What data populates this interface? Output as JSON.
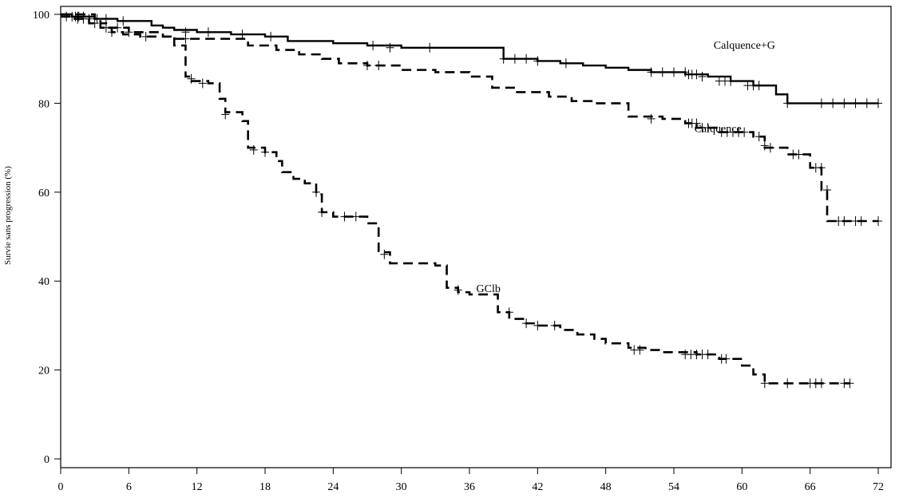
{
  "chart_data": {
    "type": "line",
    "subtype": "kaplan-meier",
    "title": "",
    "xlabel": "",
    "ylabel": "Survie sans progression (%)",
    "xlim": [
      0,
      72
    ],
    "ylim": [
      0,
      100
    ],
    "x_ticks": [
      0,
      6,
      12,
      18,
      24,
      30,
      36,
      42,
      48,
      54,
      60,
      66,
      72
    ],
    "y_ticks": [
      0,
      20,
      40,
      60,
      80,
      100
    ],
    "grid": false,
    "series": [
      {
        "name": "Calquence+G",
        "style": "solid",
        "steps": [
          [
            0,
            100
          ],
          [
            1,
            99.5
          ],
          [
            3,
            99
          ],
          [
            5,
            98.5
          ],
          [
            8,
            97.5
          ],
          [
            9,
            97
          ],
          [
            10,
            96.5
          ],
          [
            12,
            96
          ],
          [
            15,
            95.5
          ],
          [
            18,
            95
          ],
          [
            20,
            94
          ],
          [
            24,
            93.5
          ],
          [
            27,
            93
          ],
          [
            30,
            92.5
          ],
          [
            35,
            92.5
          ],
          [
            39,
            90
          ],
          [
            42,
            89.5
          ],
          [
            44,
            89
          ],
          [
            46,
            88.5
          ],
          [
            48,
            88
          ],
          [
            50,
            87.5
          ],
          [
            52,
            87
          ],
          [
            55,
            86.5
          ],
          [
            57,
            86
          ],
          [
            59,
            85
          ],
          [
            61,
            84
          ],
          [
            63,
            82
          ],
          [
            64,
            80
          ],
          [
            72,
            80
          ]
        ],
        "censors": [
          [
            1,
            99.5
          ],
          [
            1.3,
            99.5
          ],
          [
            1.6,
            99.5
          ],
          [
            2,
            99.5
          ],
          [
            2.5,
            99
          ],
          [
            3.2,
            99
          ],
          [
            4,
            99
          ],
          [
            5.5,
            98.5
          ],
          [
            11,
            96
          ],
          [
            13,
            96
          ],
          [
            16,
            95.5
          ],
          [
            18.5,
            95
          ],
          [
            27.5,
            93
          ],
          [
            29,
            92.5
          ],
          [
            32.5,
            92.5
          ],
          [
            39,
            90
          ],
          [
            40,
            90
          ],
          [
            41,
            90
          ],
          [
            42,
            89.5
          ],
          [
            44.5,
            89
          ],
          [
            52,
            87
          ],
          [
            53,
            87
          ],
          [
            54,
            87
          ],
          [
            55,
            87
          ],
          [
            55.3,
            86.5
          ],
          [
            55.6,
            86.5
          ],
          [
            56,
            86.5
          ],
          [
            56.5,
            86
          ],
          [
            58,
            85
          ],
          [
            58.5,
            85
          ],
          [
            59,
            85
          ],
          [
            60.5,
            84
          ],
          [
            61,
            84
          ],
          [
            61.5,
            84
          ],
          [
            64,
            80
          ],
          [
            67,
            80
          ],
          [
            68,
            80
          ],
          [
            69,
            80
          ],
          [
            70,
            80
          ],
          [
            71,
            80
          ],
          [
            72,
            80
          ]
        ],
        "label": "Calquence+G"
      },
      {
        "name": "Calquence",
        "style": "dashed",
        "steps": [
          [
            0,
            99.5
          ],
          [
            1,
            99
          ],
          [
            2.5,
            98
          ],
          [
            3.5,
            97
          ],
          [
            4.5,
            96
          ],
          [
            5.5,
            95.5
          ],
          [
            7,
            95
          ],
          [
            10,
            94.5
          ],
          [
            14,
            94.5
          ],
          [
            16.5,
            93
          ],
          [
            19,
            92
          ],
          [
            21,
            91
          ],
          [
            23,
            90
          ],
          [
            24.5,
            89
          ],
          [
            27,
            88.5
          ],
          [
            30,
            87.5
          ],
          [
            33,
            87
          ],
          [
            36,
            86
          ],
          [
            38,
            83.5
          ],
          [
            40,
            82.5
          ],
          [
            43,
            81.5
          ],
          [
            45,
            80.5
          ],
          [
            47,
            80
          ],
          [
            50,
            77
          ],
          [
            53,
            76.5
          ],
          [
            55,
            75.5
          ],
          [
            56,
            74.5
          ],
          [
            58,
            73.5
          ],
          [
            61,
            72.5
          ],
          [
            62,
            70
          ],
          [
            64,
            68.5
          ],
          [
            66,
            65.5
          ],
          [
            67,
            60.5
          ],
          [
            67.5,
            53.5
          ],
          [
            72,
            53.5
          ]
        ],
        "censors": [
          [
            0.5,
            99.5
          ],
          [
            1.5,
            99
          ],
          [
            3,
            98
          ],
          [
            4.5,
            96
          ],
          [
            7.5,
            95
          ],
          [
            11,
            94.5
          ],
          [
            27,
            88.5
          ],
          [
            28,
            88.5
          ],
          [
            52,
            76.5
          ],
          [
            55.3,
            75.5
          ],
          [
            55.6,
            75.5
          ],
          [
            56,
            75.5
          ],
          [
            56.5,
            74.5
          ],
          [
            57,
            74.5
          ],
          [
            58.2,
            73.5
          ],
          [
            58.7,
            73.5
          ],
          [
            59.2,
            73.5
          ],
          [
            59.7,
            73.5
          ],
          [
            60.2,
            73.5
          ],
          [
            61.5,
            72.5
          ],
          [
            62,
            70.5
          ],
          [
            62.5,
            70
          ],
          [
            64.5,
            68.5
          ],
          [
            65,
            68.5
          ],
          [
            66.5,
            65.5
          ],
          [
            67,
            65.5
          ],
          [
            67.5,
            60.5
          ],
          [
            68.5,
            53.5
          ],
          [
            69,
            53.5
          ],
          [
            70,
            53.5
          ],
          [
            70.5,
            53.5
          ],
          [
            72,
            53.5
          ]
        ],
        "label": "Calquence"
      },
      {
        "name": "GClb",
        "style": "dashed",
        "steps": [
          [
            0,
            100
          ],
          [
            3,
            99
          ],
          [
            3.5,
            98
          ],
          [
            4,
            97
          ],
          [
            6,
            96
          ],
          [
            9,
            95
          ],
          [
            10,
            93
          ],
          [
            11,
            86
          ],
          [
            11.5,
            85
          ],
          [
            13,
            84.5
          ],
          [
            14,
            81
          ],
          [
            14.5,
            78
          ],
          [
            16,
            76
          ],
          [
            16.5,
            70
          ],
          [
            18,
            69
          ],
          [
            19,
            67
          ],
          [
            19.5,
            64.5
          ],
          [
            20.5,
            63
          ],
          [
            21.5,
            62
          ],
          [
            22.5,
            59.5
          ],
          [
            23,
            55.5
          ],
          [
            24,
            54.5
          ],
          [
            26,
            54.5
          ],
          [
            27,
            53
          ],
          [
            28,
            46.5
          ],
          [
            29,
            44
          ],
          [
            33,
            43.5
          ],
          [
            34,
            38.5
          ],
          [
            35,
            37.5
          ],
          [
            36,
            37
          ],
          [
            38.5,
            33
          ],
          [
            39.5,
            31.5
          ],
          [
            41,
            30.5
          ],
          [
            42,
            30
          ],
          [
            44,
            29
          ],
          [
            45.5,
            28
          ],
          [
            47,
            27
          ],
          [
            48,
            26
          ],
          [
            50,
            25
          ],
          [
            51.5,
            24.5
          ],
          [
            53,
            24
          ],
          [
            56,
            23.5
          ],
          [
            58,
            22.5
          ],
          [
            60,
            21
          ],
          [
            61,
            19
          ],
          [
            62,
            17
          ],
          [
            69.5,
            17
          ]
        ],
        "censors": [
          [
            1.5,
            99.5
          ],
          [
            2,
            99
          ],
          [
            4,
            97
          ],
          [
            5,
            97
          ],
          [
            6,
            96
          ],
          [
            11.5,
            85.5
          ],
          [
            12.5,
            84.5
          ],
          [
            14.5,
            77.5
          ],
          [
            17,
            69.5
          ],
          [
            18,
            69
          ],
          [
            22.5,
            60
          ],
          [
            23,
            55.5
          ],
          [
            25,
            54.5
          ],
          [
            26,
            54.5
          ],
          [
            28.5,
            46
          ],
          [
            35,
            38
          ],
          [
            39.5,
            33
          ],
          [
            41,
            30.5
          ],
          [
            42,
            30
          ],
          [
            43.5,
            30
          ],
          [
            50.5,
            24.5
          ],
          [
            51,
            24.5
          ],
          [
            55,
            23.5
          ],
          [
            55.5,
            23.5
          ],
          [
            56,
            23.5
          ],
          [
            56.5,
            23.5
          ],
          [
            57,
            23.5
          ],
          [
            58.2,
            22.5
          ],
          [
            58.6,
            22.5
          ],
          [
            62,
            17
          ],
          [
            64,
            17
          ],
          [
            66,
            17
          ],
          [
            66.5,
            17
          ],
          [
            67,
            17
          ],
          [
            69,
            17
          ],
          [
            69.5,
            17
          ]
        ],
        "label": "GClb"
      }
    ],
    "annotations": [
      {
        "text": "Calquence+G",
        "x": 57.5,
        "y": 93.2
      },
      {
        "text": "Calquence",
        "x": 55.8,
        "y": 74.4
      },
      {
        "text": "GClb",
        "x": 36.6,
        "y": 38.4
      }
    ]
  }
}
